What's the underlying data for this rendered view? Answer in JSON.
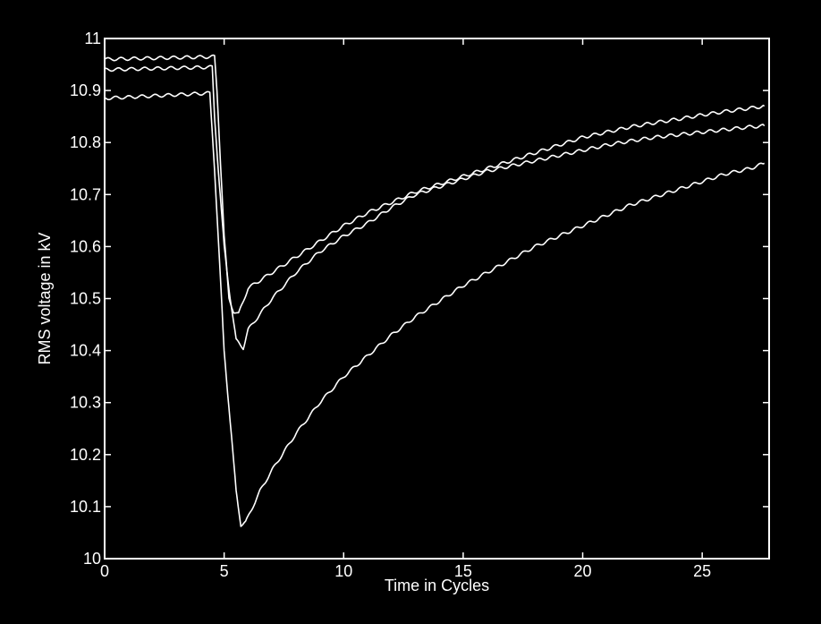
{
  "chart_data": {
    "type": "line",
    "title": "",
    "xlabel": "Time in Cycles",
    "ylabel": "RMS voltage in kV",
    "xlim": [
      0,
      27.8
    ],
    "ylim": [
      10,
      11
    ],
    "xticks": [
      0,
      5,
      10,
      15,
      20,
      25
    ],
    "yticks": [
      10,
      10.1,
      10.2,
      10.3,
      10.4,
      10.5,
      10.6,
      10.7,
      10.8,
      10.9,
      11
    ],
    "ytick_labels": [
      "10",
      "10.1",
      "10.2",
      "10.3",
      "10.4",
      "10.5",
      "10.6",
      "10.7",
      "10.8",
      "10.9",
      "11"
    ],
    "grid": false,
    "legend": "none",
    "colors": {
      "background": "#000000",
      "foreground": "#ffffff"
    },
    "series": [
      {
        "x": [
          0,
          4.6,
          4.7,
          5.0,
          5.2,
          5.4,
          5.6,
          6,
          7,
          8,
          9,
          10,
          11,
          12,
          13,
          14,
          15,
          16,
          17,
          18,
          19,
          20,
          21,
          22,
          23,
          24,
          25,
          26,
          27,
          27.6
        ],
        "y": [
          10.96,
          10.965,
          10.9,
          10.62,
          10.5,
          10.475,
          10.47,
          10.52,
          10.55,
          10.58,
          10.61,
          10.64,
          10.665,
          10.685,
          10.705,
          10.72,
          10.735,
          10.75,
          10.765,
          10.78,
          10.795,
          10.81,
          10.82,
          10.83,
          10.838,
          10.845,
          10.853,
          10.86,
          10.866,
          10.87
        ]
      },
      {
        "x": [
          0,
          4.5,
          4.6,
          4.8,
          5.0,
          5.2,
          5.5,
          5.8,
          6,
          7,
          8,
          9,
          10,
          11,
          12,
          13,
          14,
          15,
          16,
          17,
          18,
          19,
          20,
          21,
          22,
          23,
          24,
          25,
          26,
          27,
          27.6
        ],
        "y": [
          10.94,
          10.945,
          10.85,
          10.72,
          10.6,
          10.52,
          10.42,
          10.405,
          10.44,
          10.5,
          10.55,
          10.59,
          10.62,
          10.645,
          10.675,
          10.7,
          10.715,
          10.73,
          10.745,
          10.755,
          10.765,
          10.775,
          10.785,
          10.795,
          10.803,
          10.81,
          10.815,
          10.82,
          10.825,
          10.83,
          10.832
        ]
      },
      {
        "x": [
          0,
          4.4,
          4.6,
          5.0,
          5.5,
          5.7,
          5.9,
          6.5,
          7,
          8,
          9,
          10,
          11,
          12,
          13,
          14,
          15,
          16,
          17,
          18,
          19,
          20,
          21,
          22,
          23,
          24,
          25,
          26,
          27,
          27.6
        ],
        "y": [
          10.885,
          10.895,
          10.75,
          10.4,
          10.13,
          10.065,
          10.07,
          10.13,
          10.17,
          10.24,
          10.3,
          10.35,
          10.39,
          10.43,
          10.465,
          10.495,
          10.525,
          10.55,
          10.575,
          10.6,
          10.62,
          10.64,
          10.66,
          10.68,
          10.695,
          10.71,
          10.725,
          10.74,
          10.75,
          10.76
        ]
      }
    ]
  }
}
